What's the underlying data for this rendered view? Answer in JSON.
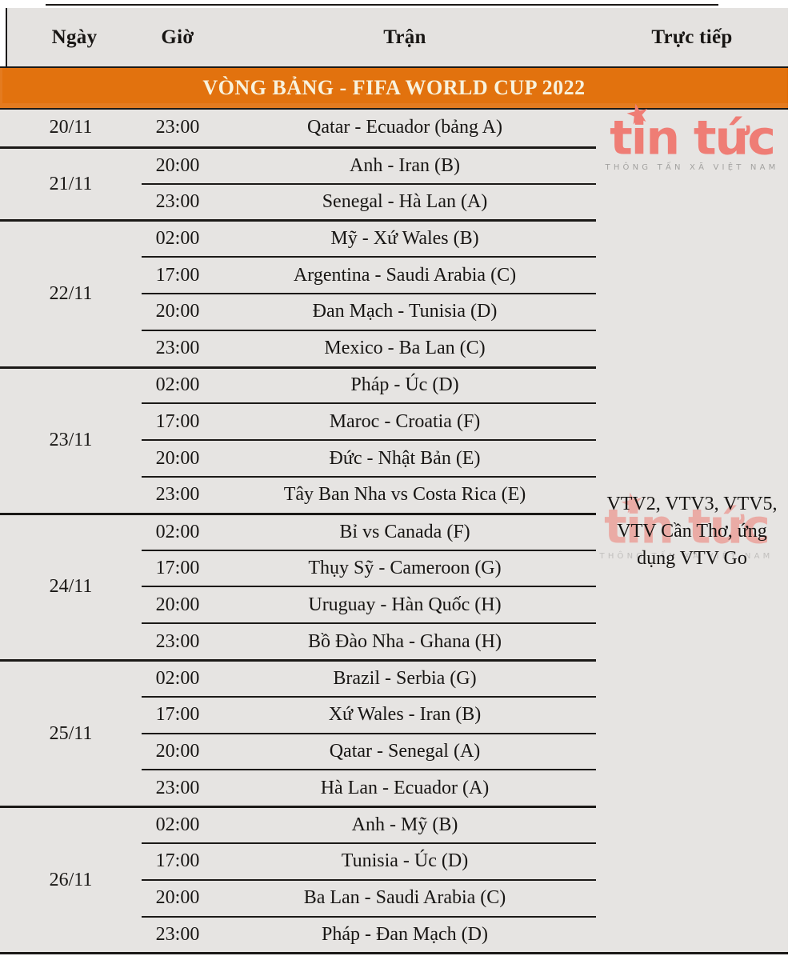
{
  "table": {
    "columns": [
      "Ngày",
      "Giờ",
      "Trận",
      "Trực tiếp"
    ],
    "section_title": "VÒNG BẢNG - FIFA WORLD CUP 2022",
    "broadcast": "VTV2, VTV3, VTV5, VTV Cần Thơ, ứng dụng VTV Go",
    "groups": [
      {
        "date": "20/11",
        "matches": [
          {
            "time": "23:00",
            "match": "Qatar - Ecuador (bảng A)"
          }
        ]
      },
      {
        "date": "21/11",
        "matches": [
          {
            "time": "20:00",
            "match": "Anh - Iran (B)"
          },
          {
            "time": "23:00",
            "match": "Senegal - Hà Lan (A)"
          }
        ]
      },
      {
        "date": "22/11",
        "matches": [
          {
            "time": "02:00",
            "match": "Mỹ - Xứ Wales (B)"
          },
          {
            "time": "17:00",
            "match": "Argentina - Saudi Arabia (C)"
          },
          {
            "time": "20:00",
            "match": "Đan Mạch - Tunisia (D)"
          },
          {
            "time": "23:00",
            "match": "Mexico - Ba Lan (C)"
          }
        ]
      },
      {
        "date": "23/11",
        "matches": [
          {
            "time": "02:00",
            "match": "Pháp - Úc (D)"
          },
          {
            "time": "17:00",
            "match": "Maroc - Croatia (F)"
          },
          {
            "time": "20:00",
            "match": "Đức - Nhật Bản (E)"
          },
          {
            "time": "23:00",
            "match": "Tây Ban Nha vs Costa Rica (E)"
          }
        ]
      },
      {
        "date": "24/11",
        "matches": [
          {
            "time": "02:00",
            "match": "Bỉ vs Canada (F)"
          },
          {
            "time": "17:00",
            "match": "Thụy Sỹ - Cameroon (G)"
          },
          {
            "time": "20:00",
            "match": "Uruguay - Hàn Quốc (H)"
          },
          {
            "time": "23:00",
            "match": "Bồ Đào Nha - Ghana (H)"
          }
        ]
      },
      {
        "date": "25/11",
        "matches": [
          {
            "time": "02:00",
            "match": "Brazil - Serbia (G)"
          },
          {
            "time": "17:00",
            "match": "Xứ Wales - Iran (B)"
          },
          {
            "time": "20:00",
            "match": "Qatar - Senegal (A)"
          },
          {
            "time": "23:00",
            "match": "Hà Lan - Ecuador (A)"
          }
        ]
      },
      {
        "date": "26/11",
        "matches": [
          {
            "time": "02:00",
            "match": "Anh - Mỹ (B)"
          },
          {
            "time": "17:00",
            "match": "Tunisia - Úc (D)"
          },
          {
            "time": "20:00",
            "match": "Ba Lan - Saudi Arabia (C)"
          },
          {
            "time": "23:00",
            "match": "Pháp - Đan Mạch (D)"
          }
        ]
      }
    ]
  },
  "watermark": {
    "brand": "tin tức",
    "tagline": "THÔNG TẤN XÃ VIỆT NAM",
    "star": "★"
  },
  "colors": {
    "accent_orange": "#e2720e",
    "brand_red": "#ef7d75",
    "tagline_gray": "#a3a2a0",
    "row_bg": "#e6e4e2",
    "rule": "#1b1917",
    "banner_text": "#f8f2dd"
  }
}
